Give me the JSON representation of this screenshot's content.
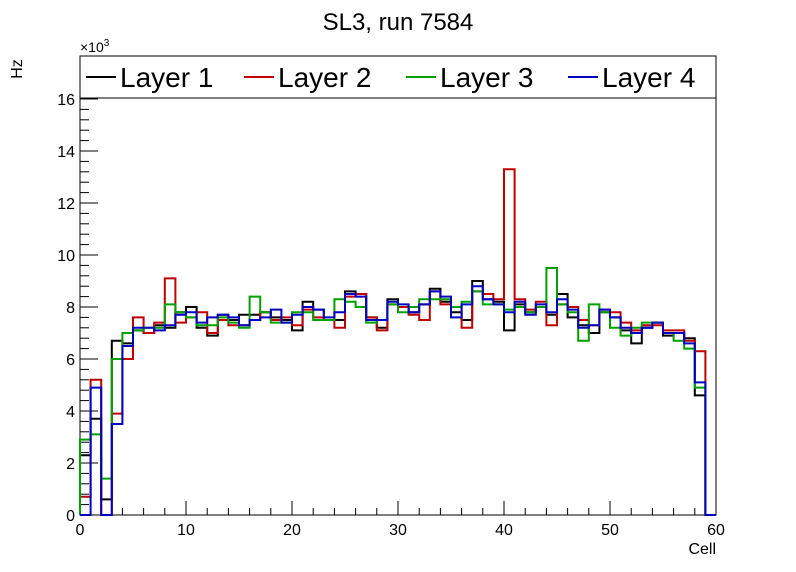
{
  "chart_data": {
    "type": "histogram",
    "title": "SL3, run 7584",
    "xlabel": "Cell",
    "ylabel": "Hz",
    "y_multiplier_base": "×10",
    "y_multiplier_exp": "3",
    "xlim": [
      0,
      60
    ],
    "ylim": [
      0,
      17.5
    ],
    "x_ticks": [
      0,
      10,
      20,
      30,
      40,
      50,
      60
    ],
    "y_ticks": [
      0,
      2,
      4,
      6,
      8,
      10,
      12,
      14,
      16
    ],
    "x_tick_labels": [
      "0",
      "10",
      "20",
      "30",
      "40",
      "50",
      "60"
    ],
    "y_tick_labels": [
      "0",
      "2",
      "4",
      "6",
      "8",
      "10",
      "12",
      "14",
      "16"
    ],
    "bin_width": 1,
    "legend_position": "top",
    "series": [
      {
        "name": "Layer 1",
        "color": "#000000",
        "values": [
          2.3,
          3.7,
          0.6,
          6.7,
          6.6,
          7.1,
          7.0,
          7.3,
          7.2,
          7.8,
          8.0,
          7.2,
          6.9,
          7.7,
          7.5,
          7.7,
          7.7,
          7.8,
          7.6,
          7.5,
          7.1,
          8.2,
          7.9,
          7.5,
          7.5,
          8.6,
          8.5,
          7.6,
          7.2,
          8.3,
          8.0,
          7.8,
          8.1,
          8.7,
          8.2,
          7.8,
          7.5,
          9.0,
          8.3,
          8.2,
          7.1,
          8.1,
          7.8,
          8.0,
          7.7,
          8.5,
          7.6,
          7.3,
          7.0,
          7.8,
          7.6,
          7.1,
          6.6,
          7.2,
          7.4,
          6.9,
          7.0,
          6.8,
          4.6,
          0.0
        ]
      },
      {
        "name": "Layer 2",
        "color": "#c00000",
        "values": [
          0.7,
          5.2,
          0.0,
          3.9,
          6.0,
          7.6,
          7.0,
          7.4,
          9.1,
          7.4,
          7.6,
          7.8,
          7.0,
          7.5,
          7.3,
          7.3,
          7.5,
          7.8,
          7.5,
          7.6,
          7.3,
          7.9,
          7.6,
          7.5,
          7.2,
          8.4,
          8.5,
          7.6,
          7.1,
          8.1,
          8.0,
          7.7,
          7.5,
          8.6,
          8.1,
          8.0,
          7.2,
          8.6,
          8.5,
          8.3,
          13.3,
          8.3,
          7.9,
          8.2,
          7.3,
          8.1,
          8.0,
          7.5,
          7.3,
          7.9,
          7.8,
          7.4,
          7.1,
          7.3,
          7.3,
          7.1,
          7.1,
          6.7,
          6.3,
          0.0
        ]
      },
      {
        "name": "Layer 3",
        "color": "#00a000",
        "values": [
          2.9,
          3.1,
          1.4,
          6.0,
          7.0,
          7.1,
          7.2,
          7.2,
          8.1,
          7.8,
          7.6,
          7.3,
          7.3,
          7.6,
          7.4,
          7.2,
          8.4,
          7.8,
          7.4,
          7.4,
          7.8,
          7.8,
          7.5,
          7.5,
          8.3,
          8.2,
          8.0,
          7.4,
          7.5,
          8.1,
          7.8,
          8.0,
          8.3,
          8.3,
          8.3,
          8.0,
          8.2,
          8.6,
          8.1,
          8.1,
          7.9,
          8.0,
          7.8,
          8.0,
          9.5,
          8.1,
          7.8,
          6.7,
          8.1,
          7.8,
          7.2,
          6.9,
          7.2,
          7.4,
          7.4,
          7.0,
          6.7,
          6.4,
          4.9,
          0.0
        ]
      },
      {
        "name": "Layer 4",
        "color": "#0000c0",
        "values": [
          0.0,
          4.9,
          0.0,
          3.5,
          6.5,
          7.2,
          7.2,
          7.1,
          7.3,
          7.7,
          7.8,
          7.4,
          7.6,
          7.7,
          7.6,
          7.3,
          7.5,
          7.6,
          7.9,
          7.4,
          7.7,
          8.0,
          7.9,
          7.6,
          7.8,
          8.5,
          8.4,
          7.5,
          7.5,
          8.2,
          8.1,
          7.8,
          8.1,
          8.6,
          8.4,
          7.6,
          8.1,
          8.8,
          8.3,
          8.1,
          7.8,
          8.2,
          7.7,
          8.1,
          7.8,
          8.3,
          7.9,
          7.2,
          7.3,
          7.9,
          7.6,
          7.2,
          7.0,
          7.2,
          7.4,
          7.0,
          7.0,
          6.6,
          5.1,
          0.0
        ]
      }
    ]
  }
}
